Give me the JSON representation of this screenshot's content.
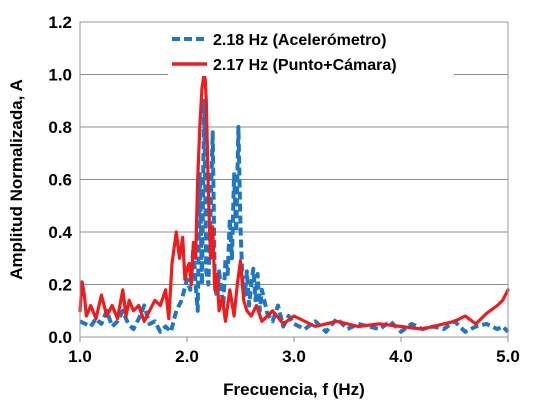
{
  "chart_data": {
    "type": "line",
    "title": "",
    "xlabel": "Frecuencia, f (Hz)",
    "ylabel": "Amplitud Normalizada, A",
    "xlim": [
      1.0,
      5.0
    ],
    "ylim": [
      0.0,
      1.2
    ],
    "x_ticks": [
      "1.0",
      "2.0",
      "3.0",
      "4.0",
      "5.0"
    ],
    "y_ticks": [
      "0.0",
      "0.2",
      "0.4",
      "0.6",
      "0.8",
      "1.0",
      "1.2"
    ],
    "grid": "horizontal",
    "legend_position": "top-right",
    "series": [
      {
        "name": "2.18 Hz (Acelerómetro)",
        "color": "#1f77c4",
        "style": "dashed",
        "x": [
          1.0,
          1.05,
          1.1,
          1.15,
          1.2,
          1.25,
          1.3,
          1.35,
          1.4,
          1.45,
          1.5,
          1.55,
          1.6,
          1.65,
          1.7,
          1.75,
          1.8,
          1.85,
          1.9,
          1.95,
          2.0,
          2.03,
          2.06,
          2.08,
          2.1,
          2.12,
          2.14,
          2.16,
          2.18,
          2.2,
          2.22,
          2.24,
          2.26,
          2.28,
          2.3,
          2.32,
          2.34,
          2.36,
          2.38,
          2.4,
          2.42,
          2.44,
          2.46,
          2.48,
          2.5,
          2.52,
          2.54,
          2.56,
          2.58,
          2.6,
          2.62,
          2.64,
          2.66,
          2.68,
          2.7,
          2.75,
          2.8,
          2.85,
          2.9,
          2.95,
          3.0,
          3.1,
          3.2,
          3.3,
          3.4,
          3.5,
          3.6,
          3.7,
          3.8,
          3.9,
          4.0,
          4.1,
          4.2,
          4.3,
          4.4,
          4.5,
          4.6,
          4.7,
          4.8,
          4.9,
          4.95,
          5.0
        ],
        "values": [
          0.06,
          0.05,
          0.04,
          0.07,
          0.05,
          0.1,
          0.04,
          0.06,
          0.1,
          0.05,
          0.03,
          0.07,
          0.12,
          0.05,
          0.06,
          0.02,
          0.04,
          0.02,
          0.1,
          0.14,
          0.22,
          0.18,
          0.34,
          0.2,
          0.1,
          0.62,
          0.2,
          0.9,
          0.25,
          0.2,
          0.46,
          0.78,
          0.2,
          0.15,
          0.25,
          0.18,
          0.12,
          0.3,
          0.24,
          0.45,
          0.3,
          0.62,
          0.4,
          0.8,
          0.42,
          0.2,
          0.16,
          0.25,
          0.12,
          0.2,
          0.26,
          0.14,
          0.24,
          0.1,
          0.18,
          0.09,
          0.06,
          0.12,
          0.04,
          0.08,
          0.05,
          0.03,
          0.06,
          0.02,
          0.07,
          0.03,
          0.05,
          0.04,
          0.03,
          0.06,
          0.02,
          0.05,
          0.03,
          0.04,
          0.03,
          0.06,
          0.02,
          0.04,
          0.05,
          0.03,
          0.04,
          0.02
        ]
      },
      {
        "name": "2.17 Hz (Punto+Cámara)",
        "color": "#ee1c1c",
        "style": "solid",
        "x": [
          1.0,
          1.02,
          1.04,
          1.06,
          1.1,
          1.15,
          1.2,
          1.25,
          1.3,
          1.35,
          1.4,
          1.43,
          1.46,
          1.5,
          1.55,
          1.6,
          1.65,
          1.7,
          1.75,
          1.8,
          1.83,
          1.86,
          1.9,
          1.93,
          1.96,
          1.98,
          2.0,
          2.02,
          2.04,
          2.06,
          2.08,
          2.1,
          2.12,
          2.14,
          2.16,
          2.17,
          2.18,
          2.2,
          2.22,
          2.24,
          2.26,
          2.28,
          2.3,
          2.33,
          2.36,
          2.4,
          2.44,
          2.47,
          2.5,
          2.53,
          2.56,
          2.6,
          2.65,
          2.7,
          2.8,
          2.9,
          3.0,
          3.2,
          3.4,
          3.6,
          3.8,
          4.0,
          4.2,
          4.4,
          4.5,
          4.6,
          4.7,
          4.8,
          4.9,
          4.95,
          5.0
        ],
        "values": [
          0.1,
          0.21,
          0.16,
          0.08,
          0.12,
          0.07,
          0.16,
          0.08,
          0.12,
          0.07,
          0.18,
          0.08,
          0.14,
          0.1,
          0.12,
          0.06,
          0.1,
          0.14,
          0.12,
          0.18,
          0.07,
          0.28,
          0.4,
          0.3,
          0.38,
          0.22,
          0.26,
          0.28,
          0.2,
          0.36,
          0.3,
          0.6,
          0.8,
          0.95,
          1.0,
          0.98,
          0.9,
          0.55,
          0.3,
          0.42,
          0.18,
          0.24,
          0.1,
          0.15,
          0.06,
          0.18,
          0.08,
          0.2,
          0.29,
          0.14,
          0.1,
          0.08,
          0.12,
          0.06,
          0.1,
          0.05,
          0.08,
          0.04,
          0.06,
          0.04,
          0.05,
          0.04,
          0.03,
          0.05,
          0.06,
          0.08,
          0.05,
          0.09,
          0.12,
          0.14,
          0.18
        ]
      }
    ]
  }
}
